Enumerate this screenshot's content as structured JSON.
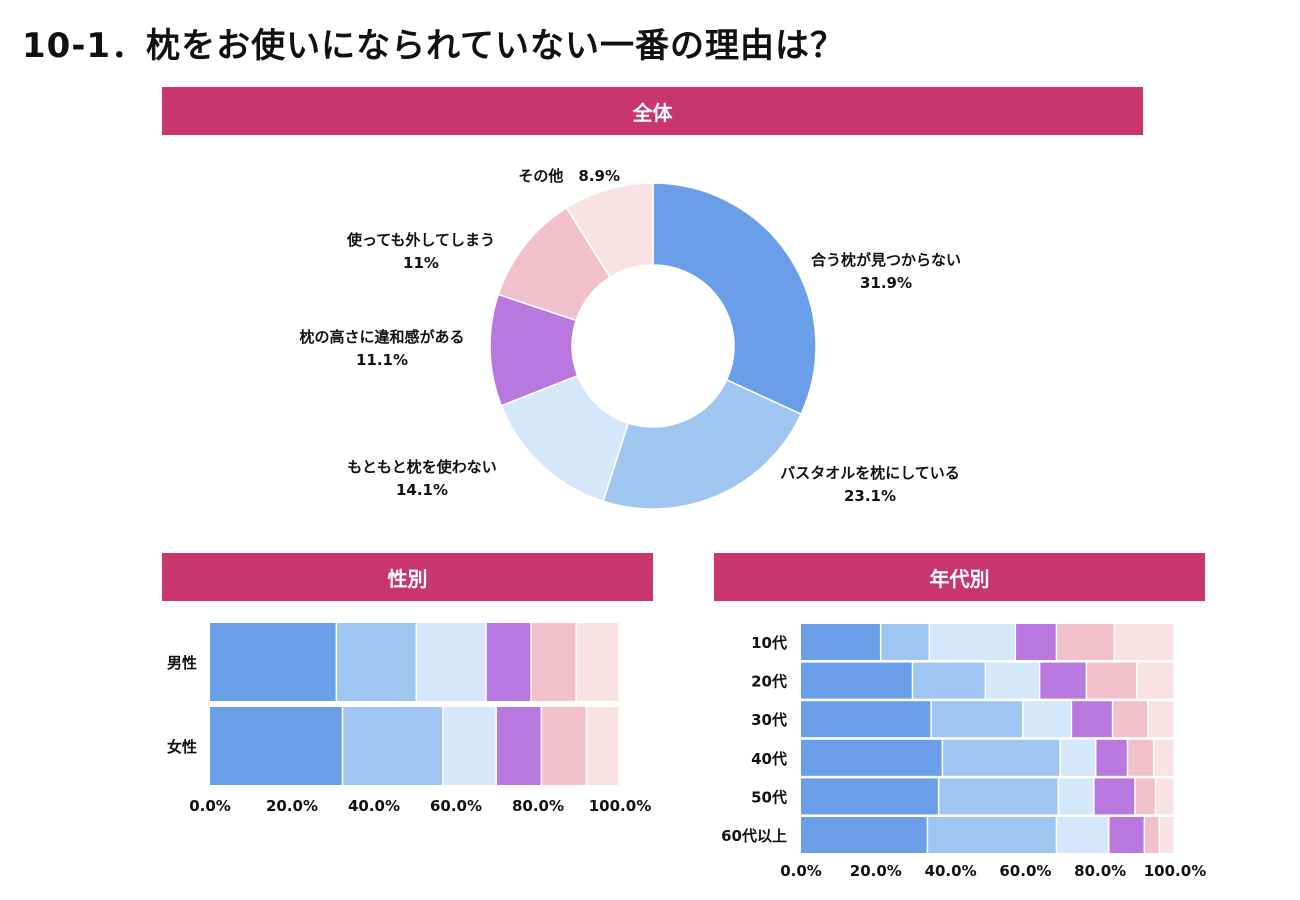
{
  "page": {
    "title": "10-1．枕をお使いになられていない一番の理由は？"
  },
  "sections": {
    "overall": "全体",
    "gender": "性別",
    "age": "年代別"
  },
  "colors": [
    "#6b9ee8",
    "#9ec6f0",
    "#d5e8fb",
    "#b878e0",
    "#f2c0cc",
    "#f9e2e4"
  ],
  "chart_data": [
    {
      "type": "pie",
      "subtype": "donut",
      "title": "全体",
      "labels": [
        "合う枕が見つからない",
        "バスタオルを枕にしている",
        "もともと枕を使わない",
        "枕の高さに違和感がある",
        "使っても外してしまう",
        "その他"
      ],
      "values": [
        31.9,
        23.1,
        14.1,
        11.1,
        11,
        8.9
      ],
      "value_labels": [
        "31.9%",
        "23.1%",
        "14.1%",
        "11.1%",
        "11%",
        "8.9%"
      ]
    },
    {
      "type": "bar",
      "subtype": "stacked-100-horizontal",
      "title": "性別",
      "categories": [
        "男性",
        "女性"
      ],
      "series": [
        {
          "name": "合う枕が見つからない",
          "values": [
            31,
            32.5
          ]
        },
        {
          "name": "バスタオルを枕にしている",
          "values": [
            19.5,
            24.5
          ]
        },
        {
          "name": "もともと枕を使わない",
          "values": [
            17,
            13
          ]
        },
        {
          "name": "枕の高さに違和感がある",
          "values": [
            11,
            11
          ]
        },
        {
          "name": "使っても外してしまう",
          "values": [
            11,
            11
          ]
        },
        {
          "name": "その他",
          "values": [
            10.5,
            8
          ]
        }
      ],
      "xlim": [
        0,
        100
      ],
      "xticks": [
        "0.0%",
        "20.0%",
        "40.0%",
        "60.0%",
        "80.0%",
        "100.0%"
      ]
    },
    {
      "type": "bar",
      "subtype": "stacked-100-horizontal",
      "title": "年代別",
      "categories": [
        "10代",
        "20代",
        "30代",
        "40代",
        "50代",
        "60代以上"
      ],
      "series": [
        {
          "name": "合う枕が見つからない",
          "values": [
            21.5,
            30,
            35,
            38,
            37,
            34
          ]
        },
        {
          "name": "バスタオルを枕にしている",
          "values": [
            13,
            19.5,
            24.5,
            31.5,
            32,
            34.5
          ]
        },
        {
          "name": "もともと枕を使わない",
          "values": [
            23,
            14.5,
            13,
            9.5,
            9.5,
            14
          ]
        },
        {
          "name": "枕の高さに違和感がある",
          "values": [
            11,
            12.5,
            11,
            8.5,
            11,
            9.5
          ]
        },
        {
          "name": "使っても外してしまう",
          "values": [
            15.5,
            13.5,
            9.5,
            7,
            5.5,
            4
          ]
        },
        {
          "name": "その他",
          "values": [
            16,
            10,
            7,
            5.5,
            5,
            4
          ]
        }
      ],
      "xlim": [
        0,
        100
      ],
      "xticks": [
        "0.0%",
        "20.0%",
        "40.0%",
        "60.0%",
        "80.0%",
        "100.0%"
      ]
    }
  ]
}
